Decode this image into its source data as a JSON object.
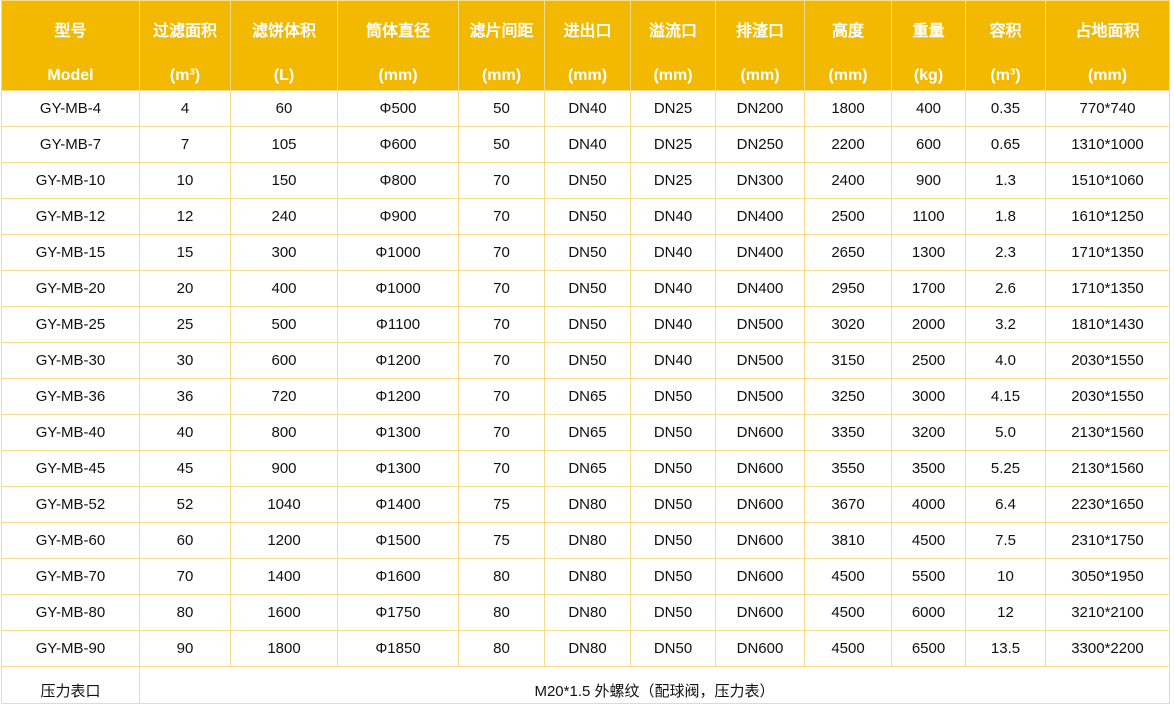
{
  "colors": {
    "header_bg": "#f2b900",
    "border": "#f7dc8c"
  },
  "headers": [
    {
      "name": "型号",
      "unit": "Model"
    },
    {
      "name": "过滤面积",
      "unit": "(m³)"
    },
    {
      "name": "滤饼体积",
      "unit": "(L)"
    },
    {
      "name": "筒体直径",
      "unit": "(mm)"
    },
    {
      "name": "滤片间距",
      "unit": "(mm)"
    },
    {
      "name": "进出口",
      "unit": "(mm)"
    },
    {
      "name": "溢流口",
      "unit": "(mm)"
    },
    {
      "name": "排渣口",
      "unit": "(mm)"
    },
    {
      "name": "高度",
      "unit": "(mm)"
    },
    {
      "name": "重量",
      "unit": "(kg)"
    },
    {
      "name": "容积",
      "unit": "(m³)"
    },
    {
      "name": "占地面积",
      "unit": "(mm)"
    }
  ],
  "rows": [
    [
      "GY-MB-4",
      "4",
      "60",
      "Φ500",
      "50",
      "DN40",
      "DN25",
      "DN200",
      "1800",
      "400",
      "0.35",
      "770*740"
    ],
    [
      "GY-MB-7",
      "7",
      "105",
      "Φ600",
      "50",
      "DN40",
      "DN25",
      "DN250",
      "2200",
      "600",
      "0.65",
      "1310*1000"
    ],
    [
      "GY-MB-10",
      "10",
      "150",
      "Φ800",
      "70",
      "DN50",
      "DN25",
      "DN300",
      "2400",
      "900",
      "1.3",
      "1510*1060"
    ],
    [
      "GY-MB-12",
      "12",
      "240",
      "Φ900",
      "70",
      "DN50",
      "DN40",
      "DN400",
      "2500",
      "1100",
      "1.8",
      "1610*1250"
    ],
    [
      "GY-MB-15",
      "15",
      "300",
      "Φ1000",
      "70",
      "DN50",
      "DN40",
      "DN400",
      "2650",
      "1300",
      "2.3",
      "1710*1350"
    ],
    [
      "GY-MB-20",
      "20",
      "400",
      "Φ1000",
      "70",
      "DN50",
      "DN40",
      "DN400",
      "2950",
      "1700",
      "2.6",
      "1710*1350"
    ],
    [
      "GY-MB-25",
      "25",
      "500",
      "Φ1100",
      "70",
      "DN50",
      "DN40",
      "DN500",
      "3020",
      "2000",
      "3.2",
      "1810*1430"
    ],
    [
      "GY-MB-30",
      "30",
      "600",
      "Φ1200",
      "70",
      "DN50",
      "DN40",
      "DN500",
      "3150",
      "2500",
      "4.0",
      "2030*1550"
    ],
    [
      "GY-MB-36",
      "36",
      "720",
      "Φ1200",
      "70",
      "DN65",
      "DN50",
      "DN500",
      "3250",
      "3000",
      "4.15",
      "2030*1550"
    ],
    [
      "GY-MB-40",
      "40",
      "800",
      "Φ1300",
      "70",
      "DN65",
      "DN50",
      "DN600",
      "3350",
      "3200",
      "5.0",
      "2130*1560"
    ],
    [
      "GY-MB-45",
      "45",
      "900",
      "Φ1300",
      "70",
      "DN65",
      "DN50",
      "DN600",
      "3550",
      "3500",
      "5.25",
      "2130*1560"
    ],
    [
      "GY-MB-52",
      "52",
      "1040",
      "Φ1400",
      "75",
      "DN80",
      "DN50",
      "DN600",
      "3670",
      "4000",
      "6.4",
      "2230*1650"
    ],
    [
      "GY-MB-60",
      "60",
      "1200",
      "Φ1500",
      "75",
      "DN80",
      "DN50",
      "DN600",
      "3810",
      "4500",
      "7.5",
      "2310*1750"
    ],
    [
      "GY-MB-70",
      "70",
      "1400",
      "Φ1600",
      "80",
      "DN80",
      "DN50",
      "DN600",
      "4500",
      "5500",
      "10",
      "3050*1950"
    ],
    [
      "GY-MB-80",
      "80",
      "1600",
      "Φ1750",
      "80",
      "DN80",
      "DN50",
      "DN600",
      "4500",
      "6000",
      "12",
      "3210*2100"
    ],
    [
      "GY-MB-90",
      "90",
      "1800",
      "Φ1850",
      "80",
      "DN80",
      "DN50",
      "DN600",
      "4500",
      "6500",
      "13.5",
      "3300*2200"
    ]
  ],
  "footer": {
    "label": "压力表口",
    "value": "M20*1.5 外螺纹（配球阀，压力表）"
  }
}
